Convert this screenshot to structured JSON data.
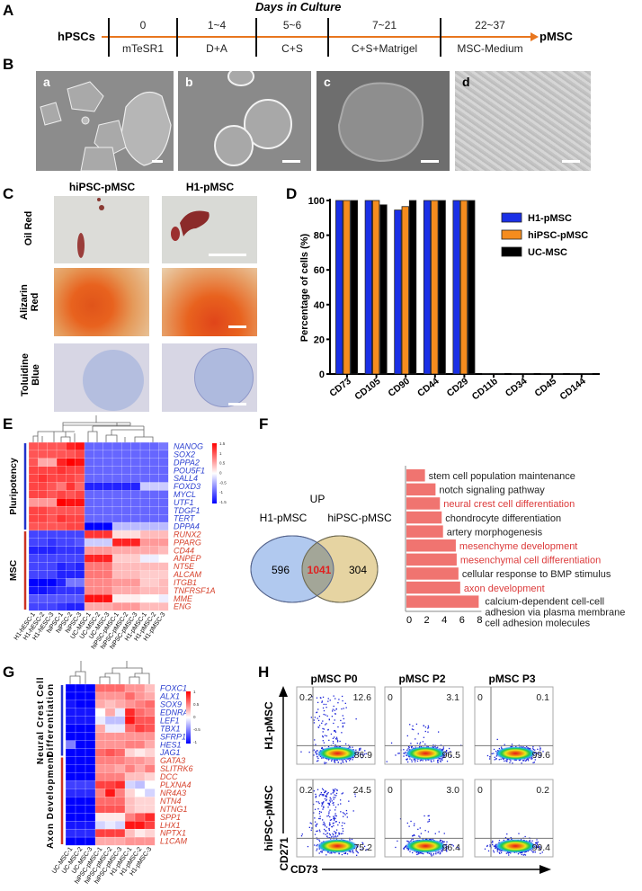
{
  "panel_labels": {
    "A": "A",
    "B": "B",
    "C": "C",
    "D": "D",
    "E": "E",
    "F": "F",
    "G": "G",
    "H": "H"
  },
  "timeline": {
    "title": "Days in Culture",
    "start": "hPSCs",
    "end": "pMSC",
    "stages": [
      {
        "days": "0",
        "medium": "mTeSR1"
      },
      {
        "days": "1~4",
        "medium": "D+A"
      },
      {
        "days": "5~6",
        "medium": "C+S"
      },
      {
        "days": "7~21",
        "medium": "C+S+Matrigel"
      },
      {
        "days": "22~37",
        "medium": "MSC-Medium"
      }
    ],
    "color": "#e8761e"
  },
  "culture_images": [
    {
      "label": "a"
    },
    {
      "label": "b"
    },
    {
      "label": "c"
    },
    {
      "label": "d"
    }
  ],
  "staining": {
    "columns": [
      "hiPSC-pMSC",
      "H1-pMSC"
    ],
    "rows": [
      "Oil Red",
      "Alizarin Red",
      "Toluidine Blue"
    ]
  },
  "chart_data": {
    "surface_markers": {
      "type": "bar",
      "ylabel": "Percentage of cells (%)",
      "ylim": [
        0,
        100
      ],
      "yticks": [
        "0",
        "20",
        "40",
        "60",
        "80",
        "100"
      ],
      "categories": [
        "CD73",
        "CD105",
        "CD90",
        "CD44",
        "CD29",
        "CD11b",
        "CD34",
        "CD45",
        "CD144"
      ],
      "series": [
        {
          "name": "H1-pMSC",
          "color": "#1a30e6",
          "values": [
            100,
            100,
            94.5,
            100,
            100,
            0.3,
            0.3,
            0.3,
            0.3
          ]
        },
        {
          "name": "hiPSC-pMSC",
          "color": "#f58c1e",
          "values": [
            100,
            100,
            96.5,
            100,
            100,
            0.3,
            0.3,
            0.3,
            0.3
          ]
        },
        {
          "name": "UC-MSC",
          "color": "#000000",
          "values": [
            100,
            97.5,
            100,
            100,
            100,
            0.3,
            0.3,
            0.3,
            0.3
          ]
        }
      ],
      "legend": "right"
    },
    "heatmap_e": {
      "type": "heatmap",
      "groups": [
        {
          "name": "Pluripotency",
          "rows": 11,
          "color": "#2233cc"
        },
        {
          "name": "MSC",
          "rows": 10,
          "color": "#cc3322"
        }
      ],
      "columns": [
        "H1-hESC-1",
        "H1-hESC-2",
        "H1-hESC-3",
        "hiPSC-1",
        "hiPSC-2",
        "hiPSC-3",
        "UC-MSC-1",
        "UC-MSC-2",
        "UC-MSC-3",
        "hiPSC-pMSC-1",
        "hiPSC-pMSC-2",
        "hiPSC-pMSC-3",
        "H1-pMSC-1",
        "H1-pMSC-2",
        "H1-pMSC-3"
      ],
      "rows": [
        "NANOG",
        "SOX2",
        "DPPA2",
        "POU5F1",
        "SALL4",
        "FOXD3",
        "MYCL",
        "UTF1",
        "TDGF1",
        "TERT",
        "DPPA4",
        "RUNX2",
        "PPARG",
        "CD44",
        "ANPEP",
        "NT5E",
        "ALCAM",
        "ITGB1",
        "TNFRSF1A",
        "MME",
        "ENG"
      ],
      "colorbar_ticks": [
        "1.5",
        "1",
        "0.5",
        "0",
        "-0.5",
        "-1",
        "-1.5"
      ],
      "range": [
        -1.5,
        1.5
      ],
      "values": [
        [
          1.0,
          1.0,
          1.0,
          1.0,
          1.3,
          1.4,
          -0.9,
          -0.9,
          -0.9,
          -0.9,
          -0.9,
          -0.9,
          -0.9,
          -0.9,
          -0.8
        ],
        [
          1.0,
          1.0,
          1.0,
          1.0,
          1.0,
          1.1,
          -0.9,
          -0.9,
          -0.9,
          -0.9,
          -0.9,
          -0.9,
          -0.9,
          -0.9,
          -0.9
        ],
        [
          1.0,
          0.5,
          0.5,
          1.3,
          1.5,
          1.4,
          -0.9,
          -0.9,
          -0.9,
          -0.9,
          -0.9,
          -0.9,
          -0.9,
          -0.9,
          -0.9
        ],
        [
          1.1,
          1.1,
          1.1,
          1.2,
          1.1,
          1.1,
          -0.9,
          -0.9,
          -0.9,
          -0.9,
          -0.9,
          -0.9,
          -0.9,
          -0.9,
          -0.9
        ],
        [
          1.1,
          1.2,
          1.1,
          1.1,
          1.1,
          1.0,
          -0.9,
          -0.9,
          -0.9,
          -0.9,
          -0.9,
          -0.9,
          -0.9,
          -0.9,
          -0.9
        ],
        [
          1.1,
          1.1,
          1.0,
          0.8,
          1.2,
          0.9,
          -1.3,
          -1.3,
          -1.3,
          -1.3,
          -1.3,
          -1.3,
          -0.3,
          -0.3,
          -0.3
        ],
        [
          1.1,
          1.1,
          1.0,
          1.1,
          1.0,
          1.1,
          -0.9,
          -0.9,
          -0.9,
          -0.9,
          -0.9,
          -0.9,
          -0.9,
          -0.9,
          -0.9
        ],
        [
          0.6,
          0.6,
          0.6,
          1.5,
          1.4,
          1.4,
          -0.9,
          -0.9,
          -0.9,
          -0.9,
          -0.9,
          -0.9,
          -0.9,
          -0.9,
          -0.9
        ],
        [
          1.1,
          1.1,
          1.0,
          1.0,
          1.0,
          1.0,
          -0.9,
          -0.9,
          -0.9,
          -0.9,
          -0.9,
          -0.9,
          -0.9,
          -0.9,
          -0.9
        ],
        [
          1.1,
          1.1,
          1.0,
          1.2,
          1.1,
          1.1,
          -0.9,
          -0.9,
          -0.9,
          -0.9,
          -0.9,
          -0.9,
          -0.9,
          -0.9,
          -0.9
        ],
        [
          1.0,
          1.0,
          1.0,
          1.0,
          1.1,
          1.1,
          -1.5,
          -1.5,
          -1.5,
          -0.4,
          -0.4,
          -0.4,
          -0.4,
          -0.4,
          -0.4
        ],
        [
          -1.1,
          -1.1,
          -1.1,
          -1.1,
          -1.1,
          -1.1,
          1.2,
          1.2,
          1.2,
          0.2,
          0.2,
          0.2,
          0.4,
          0.4,
          0.4
        ],
        [
          -1.1,
          -1.1,
          -1.2,
          -1.1,
          -1.1,
          -1.0,
          -0.3,
          -0.3,
          -0.3,
          1.3,
          1.3,
          1.3,
          0.6,
          0.6,
          0.6
        ],
        [
          -1.3,
          -1.3,
          -1.3,
          -1.2,
          -1.2,
          -1.2,
          0.6,
          0.6,
          0.6,
          0.5,
          0.5,
          0.5,
          0.5,
          0.5,
          0.4
        ],
        [
          -1.1,
          -1.1,
          -1.1,
          -1.1,
          -1.1,
          -1.1,
          1.3,
          1.3,
          1.3,
          0.3,
          0.3,
          0.3,
          -0.1,
          -0.1,
          0.0
        ],
        [
          -1.1,
          -1.1,
          -1.1,
          -1.3,
          -1.2,
          -1.3,
          0.8,
          0.8,
          0.8,
          0.4,
          0.4,
          0.4,
          0.4,
          0.4,
          0.4
        ],
        [
          -1.1,
          -1.1,
          -1.1,
          -1.3,
          -1.3,
          -1.3,
          0.8,
          0.8,
          0.8,
          0.4,
          0.4,
          0.4,
          0.3,
          0.3,
          0.3
        ],
        [
          -1.5,
          -1.5,
          -1.5,
          -1.3,
          -0.8,
          -0.8,
          0.7,
          0.7,
          0.7,
          0.6,
          0.6,
          0.6,
          0.3,
          0.3,
          0.4
        ],
        [
          -1.4,
          -1.4,
          -1.3,
          -1.2,
          -1.2,
          -1.2,
          0.7,
          0.7,
          0.7,
          0.5,
          0.5,
          0.5,
          0.4,
          0.4,
          0.4
        ],
        [
          -1.0,
          -1.0,
          -1.0,
          -1.0,
          -1.0,
          -1.0,
          1.4,
          1.4,
          1.4,
          0.1,
          0.1,
          0.1,
          0.0,
          0.0,
          -0.1
        ],
        [
          -1.1,
          -1.1,
          -1.1,
          -1.2,
          -1.3,
          -1.3,
          0.5,
          0.5,
          0.5,
          0.6,
          0.6,
          0.6,
          0.4,
          0.4,
          0.4
        ]
      ]
    },
    "venn": {
      "title": "UP",
      "sets": [
        "H1-pMSC",
        "hiPSC-pMSC"
      ],
      "only_a": "596",
      "both": "1041",
      "only_b": "304"
    },
    "go_enrichment": {
      "type": "bar",
      "orientation": "horizontal",
      "xlim": [
        0,
        8
      ],
      "xticks": [
        "0",
        "2",
        "4",
        "6",
        "8"
      ],
      "color": "#f07470",
      "terms": [
        {
          "label": "stem cell population maintenance",
          "value": 1.9,
          "highlight": false
        },
        {
          "label": "notch signaling pathway",
          "value": 3.1,
          "highlight": false
        },
        {
          "label": "neural crest cell differentiation",
          "value": 3.6,
          "highlight": true
        },
        {
          "label": "chondrocyte differentiation",
          "value": 3.8,
          "highlight": false
        },
        {
          "label": "artery morphogenesis",
          "value": 3.95,
          "highlight": false
        },
        {
          "label": "mesenchyme development",
          "value": 5.4,
          "highlight": true
        },
        {
          "label": "mesenchymal cell differentiation",
          "value": 5.5,
          "highlight": true
        },
        {
          "label": "cellular response to BMP stimulus",
          "value": 5.7,
          "highlight": false
        },
        {
          "label": "axon development",
          "value": 5.9,
          "highlight": true
        },
        {
          "label": "calcium-dependent cell-cell adhesion via plasma membrane cell adhesion molecules",
          "value": 8.0,
          "highlight": false
        }
      ]
    },
    "heatmap_g": {
      "type": "heatmap",
      "groups": [
        {
          "name": "Neural Crest Cell Differentiation",
          "rows": 9,
          "color": "#2233cc"
        },
        {
          "name": "Axon Development",
          "rows": 11,
          "color": "#cc3322"
        }
      ],
      "columns": [
        "UC-MSC-1",
        "UC-MSC-2",
        "UC-MSC-3",
        "hiPSC-pMSC-1",
        "hiPSC-pMSC-2",
        "hiPSC-pMSC-3",
        "H1-pMSC-1",
        "H1-pMSC-2",
        "H1-pMSC-3"
      ],
      "rows": [
        "FOXC1",
        "ALX1",
        "SOX9",
        "EDNRA",
        "LEF1",
        "TBX1",
        "SFRP1",
        "HES1",
        "JAG1",
        "GATA3",
        "SLITRK6",
        "DCC",
        "PLXNA4",
        "NR4A3",
        "NTN4",
        "NTNG1",
        "SPP1",
        "LHX1",
        "NPTX1",
        "L1CAM"
      ],
      "colorbar_ticks": [
        "1",
        "0.5",
        "0",
        "-0.5",
        "-1"
      ],
      "range": [
        -1.2,
        1.2
      ],
      "values": [
        [
          -1.2,
          -1.2,
          -1.2,
          0.7,
          0.7,
          0.7,
          0.5,
          0.5,
          0.3
        ],
        [
          -1.2,
          -1.2,
          -1.2,
          0.5,
          0.5,
          0.5,
          0.7,
          0.5,
          0.4
        ],
        [
          -1.1,
          -1.3,
          -1.2,
          0.4,
          0.3,
          0.4,
          0.5,
          0.6,
          0.7
        ],
        [
          -1.1,
          -1.1,
          -1.1,
          0.0,
          0.4,
          -0.1,
          1.0,
          0.7,
          0.6
        ],
        [
          -1.1,
          -1.1,
          -1.1,
          -0.1,
          -0.3,
          -0.3,
          1.1,
          0.8,
          0.8
        ],
        [
          -1.2,
          -1.2,
          -1.2,
          0.4,
          -0.1,
          -0.1,
          0.7,
          0.9,
          0.8
        ],
        [
          -1.3,
          -1.2,
          -1.2,
          0.5,
          0.5,
          0.5,
          0.5,
          0.5,
          0.5
        ],
        [
          -0.6,
          -1.4,
          -1.4,
          0.5,
          0.5,
          0.5,
          0.6,
          0.6,
          0.4
        ],
        [
          -1.2,
          -1.2,
          -1.2,
          0.7,
          0.8,
          0.7,
          0.2,
          0.1,
          0.2
        ],
        [
          -1.2,
          -1.2,
          -1.2,
          0.6,
          0.6,
          0.6,
          0.5,
          0.5,
          0.4
        ],
        [
          -1.2,
          -1.2,
          -1.2,
          0.5,
          0.5,
          0.4,
          0.6,
          0.4,
          0.6
        ],
        [
          -1.2,
          -1.2,
          -1.2,
          0.6,
          0.6,
          0.6,
          0.3,
          0.3,
          0.2
        ],
        [
          -0.9,
          -0.9,
          -0.9,
          0.9,
          0.9,
          1.0,
          -0.2,
          -0.3,
          0.0
        ],
        [
          -1.0,
          -1.0,
          -1.0,
          0.6,
          1.1,
          0.6,
          0.2,
          0.0,
          -0.2
        ],
        [
          -1.2,
          -1.3,
          -1.2,
          0.7,
          0.7,
          0.7,
          0.3,
          0.2,
          0.2
        ],
        [
          -1.2,
          -1.3,
          -1.2,
          0.8,
          0.8,
          0.8,
          0.3,
          0.2,
          0.2
        ],
        [
          -1.2,
          -1.2,
          -1.2,
          0.1,
          0.1,
          0.1,
          0.6,
          0.8,
          1.0
        ],
        [
          -1.1,
          -1.1,
          -1.1,
          -0.2,
          -0.1,
          -0.2,
          1.1,
          1.1,
          0.9
        ],
        [
          -1.0,
          -1.0,
          -1.0,
          0.9,
          0.9,
          0.9,
          0.3,
          0.1,
          0.2
        ],
        [
          -1.2,
          -1.2,
          -1.2,
          0.4,
          0.4,
          0.4,
          0.5,
          0.5,
          0.5
        ]
      ]
    },
    "flow": {
      "type": "scatter",
      "xlabel": "CD73",
      "ylabel": "CD271",
      "columns": [
        "pMSC P0",
        "pMSC P2",
        "pMSC P3"
      ],
      "rows": [
        "H1-pMSC",
        "hiPSC-pMSC"
      ],
      "quadrants": [
        [
          {
            "ul": "0.2",
            "ur": "12.6",
            "lr": "86.9"
          },
          {
            "ul": "0",
            "ur": "3.1",
            "lr": "96.5"
          },
          {
            "ul": "0",
            "ur": "0.1",
            "lr": "99.6"
          }
        ],
        [
          {
            "ul": "0.2",
            "ur": "24.5",
            "lr": "75.2"
          },
          {
            "ul": "0",
            "ur": "3.0",
            "lr": "96.4"
          },
          {
            "ul": "0",
            "ur": "0.2",
            "lr": "99.4"
          }
        ]
      ]
    }
  }
}
